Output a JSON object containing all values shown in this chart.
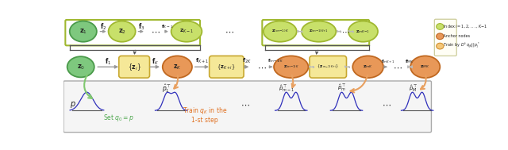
{
  "bg_color": "#ffffff",
  "fig_width": 6.4,
  "fig_height": 1.89,
  "dpi": 100,
  "green_fc": "#7ec87e",
  "green_ec": "#4a9a4a",
  "yellow_fc": "#c8e06a",
  "yellow_ec": "#a0b830",
  "orange_fc": "#e89858",
  "orange_ec": "#c06820",
  "lyellow_fc": "#f5e898",
  "lyellow_ec": "#c8a830",
  "arrow_color": "#999999",
  "darrow_color": "#bbbbbb",
  "bracket_color": "#555555",
  "green_arrow": "#80c870",
  "orange_arrow": "#e8a060"
}
